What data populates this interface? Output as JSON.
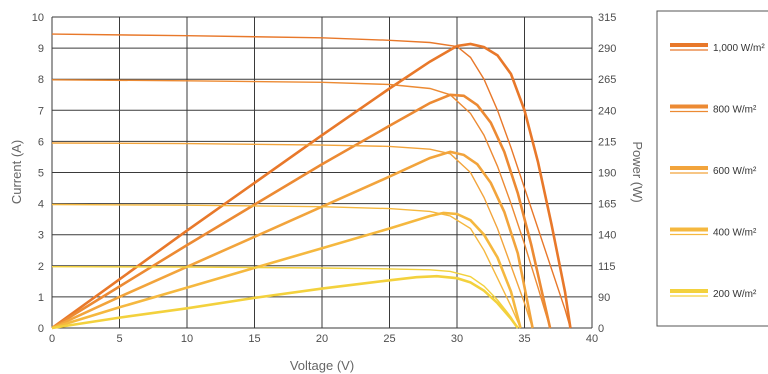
{
  "chart_data": {
    "type": "line",
    "title": "",
    "xlabel": "Voltage (V)",
    "ylabel_left": "Current (A)",
    "ylabel_right": "Power (W)",
    "xlim": [
      0,
      40
    ],
    "ylim_left": [
      0,
      10
    ],
    "ylim_right": [
      0,
      315
    ],
    "x_ticks": [
      "0",
      "5",
      "10",
      "15",
      "20",
      "25",
      "30",
      "35",
      "40"
    ],
    "y_left_ticks": [
      "0",
      "1",
      "2",
      "3",
      "4",
      "5",
      "6",
      "7",
      "8",
      "9",
      "10"
    ],
    "y_right_ticks": [
      "0",
      "90",
      "115",
      "140",
      "165",
      "190",
      "215",
      "240",
      "265",
      "290",
      "315"
    ],
    "grid": true,
    "legend_position": "right",
    "series": [
      {
        "name": "1,000 W/m²",
        "color": "#e8782a",
        "iv_curve": [
          [
            0,
            9.45
          ],
          [
            10,
            9.4
          ],
          [
            20,
            9.33
          ],
          [
            25,
            9.25
          ],
          [
            28,
            9.18
          ],
          [
            30,
            9.05
          ],
          [
            31,
            8.7
          ],
          [
            32,
            8.0
          ],
          [
            33,
            7.0
          ],
          [
            34,
            5.8
          ],
          [
            35,
            4.5
          ],
          [
            36,
            3.2
          ],
          [
            37,
            1.9
          ],
          [
            38,
            0.6
          ],
          [
            38.4,
            0
          ]
        ],
        "power_curve": [
          [
            0,
            0
          ],
          [
            5,
            47
          ],
          [
            10,
            94
          ],
          [
            15,
            140
          ],
          [
            20,
            186
          ],
          [
            25,
            231
          ],
          [
            28,
            257
          ],
          [
            30,
            272
          ],
          [
            31,
            274
          ],
          [
            32,
            271
          ],
          [
            33,
            263
          ],
          [
            34,
            245
          ],
          [
            35,
            210
          ],
          [
            36,
            160
          ],
          [
            37,
            100
          ],
          [
            38,
            35
          ],
          [
            38.4,
            0
          ]
        ]
      },
      {
        "name": "800 W/m²",
        "color": "#ec8a33",
        "iv_curve": [
          [
            0,
            7.98
          ],
          [
            10,
            7.95
          ],
          [
            20,
            7.9
          ],
          [
            25,
            7.83
          ],
          [
            28,
            7.7
          ],
          [
            29.5,
            7.5
          ],
          [
            31,
            6.9
          ],
          [
            32,
            6.2
          ],
          [
            33,
            5.2
          ],
          [
            34,
            4.0
          ],
          [
            35,
            2.7
          ],
          [
            36,
            1.3
          ],
          [
            36.9,
            0
          ]
        ],
        "power_curve": [
          [
            0,
            0
          ],
          [
            5,
            40
          ],
          [
            10,
            80
          ],
          [
            15,
            119
          ],
          [
            20,
            158
          ],
          [
            25,
            195
          ],
          [
            28,
            217
          ],
          [
            29.5,
            225
          ],
          [
            30.5,
            224
          ],
          [
            31.5,
            215
          ],
          [
            32.5,
            198
          ],
          [
            33.5,
            170
          ],
          [
            34.5,
            130
          ],
          [
            35.5,
            80
          ],
          [
            36.9,
            0
          ]
        ]
      },
      {
        "name": "600 W/m²",
        "color": "#f2a43c",
        "iv_curve": [
          [
            0,
            5.95
          ],
          [
            10,
            5.93
          ],
          [
            20,
            5.88
          ],
          [
            25,
            5.84
          ],
          [
            28,
            5.75
          ],
          [
            29.5,
            5.6
          ],
          [
            31,
            5.0
          ],
          [
            32,
            4.2
          ],
          [
            33,
            3.2
          ],
          [
            34,
            2.0
          ],
          [
            35,
            0.8
          ],
          [
            35.6,
            0
          ]
        ],
        "power_curve": [
          [
            0,
            0
          ],
          [
            5,
            30
          ],
          [
            10,
            59
          ],
          [
            15,
            88
          ],
          [
            20,
            117
          ],
          [
            25,
            146
          ],
          [
            28,
            164
          ],
          [
            29.5,
            170
          ],
          [
            30.5,
            167
          ],
          [
            31.5,
            158
          ],
          [
            32.5,
            140
          ],
          [
            33.5,
            112
          ],
          [
            34.5,
            72
          ],
          [
            35.6,
            0
          ]
        ]
      },
      {
        "name": "400 W/m²",
        "color": "#f5b83f",
        "iv_curve": [
          [
            0,
            3.97
          ],
          [
            10,
            3.95
          ],
          [
            20,
            3.9
          ],
          [
            25,
            3.84
          ],
          [
            28,
            3.75
          ],
          [
            29.5,
            3.6
          ],
          [
            31,
            3.2
          ],
          [
            32,
            2.5
          ],
          [
            33,
            1.6
          ],
          [
            34,
            0.7
          ],
          [
            34.7,
            0
          ]
        ],
        "power_curve": [
          [
            0,
            0
          ],
          [
            5,
            20
          ],
          [
            10,
            39
          ],
          [
            15,
            58
          ],
          [
            20,
            77
          ],
          [
            25,
            96
          ],
          [
            28,
            108
          ],
          [
            29,
            111
          ],
          [
            30,
            110
          ],
          [
            31,
            104
          ],
          [
            32,
            90
          ],
          [
            33,
            68
          ],
          [
            34,
            35
          ],
          [
            34.7,
            0
          ]
        ]
      },
      {
        "name": "200 W/m²",
        "color": "#f3d13d",
        "iv_curve": [
          [
            0,
            1.97
          ],
          [
            10,
            1.96
          ],
          [
            20,
            1.93
          ],
          [
            25,
            1.9
          ],
          [
            28,
            1.87
          ],
          [
            29.5,
            1.82
          ],
          [
            31,
            1.65
          ],
          [
            32,
            1.35
          ],
          [
            33,
            0.9
          ],
          [
            34,
            0.35
          ],
          [
            34.5,
            0
          ]
        ],
        "power_curve": [
          [
            0,
            0
          ],
          [
            5,
            10
          ],
          [
            10,
            19
          ],
          [
            15,
            29
          ],
          [
            20,
            38
          ],
          [
            25,
            46
          ],
          [
            27,
            49
          ],
          [
            28.5,
            50
          ],
          [
            30,
            48
          ],
          [
            31,
            44
          ],
          [
            32,
            36
          ],
          [
            33,
            24
          ],
          [
            34,
            9
          ],
          [
            34.5,
            0
          ]
        ]
      }
    ]
  }
}
